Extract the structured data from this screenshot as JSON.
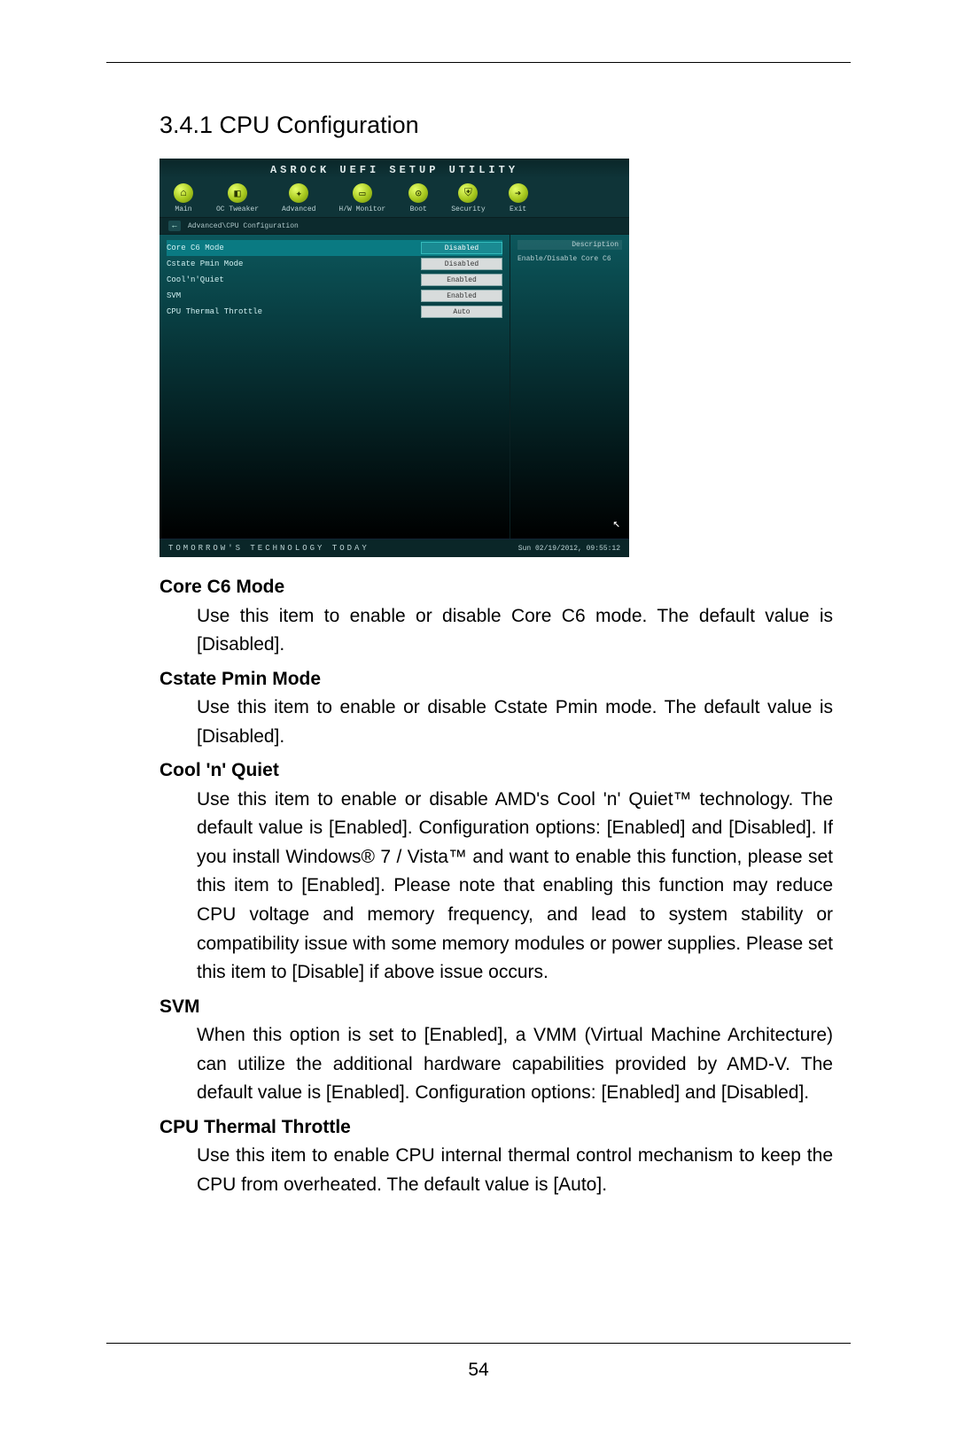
{
  "page_number": "54",
  "section_title": "3.4.1  CPU Configuration",
  "bios": {
    "header": "ASROCK UEFI SETUP UTILITY",
    "tabs": [
      {
        "glyph": "⌂",
        "label": "Main"
      },
      {
        "glyph": "◧",
        "label": "OC Tweaker"
      },
      {
        "glyph": "✦",
        "label": "Advanced"
      },
      {
        "glyph": "▭",
        "label": "H/W Monitor"
      },
      {
        "glyph": "⊙",
        "label": "Boot"
      },
      {
        "glyph": "⛨",
        "label": "Security"
      },
      {
        "glyph": "➔",
        "label": "Exit"
      }
    ],
    "breadcrumb": "Advanced\\CPU Configuration",
    "rows": [
      {
        "name": "Core C6 Mode",
        "value": "Disabled",
        "selected": true
      },
      {
        "name": "Cstate Pmin Mode",
        "value": "Disabled",
        "selected": false
      },
      {
        "name": "Cool'n'Quiet",
        "value": "Enabled",
        "selected": false
      },
      {
        "name": "SVM",
        "value": "Enabled",
        "selected": false
      },
      {
        "name": "CPU Thermal Throttle",
        "value": "Auto",
        "selected": false
      }
    ],
    "description_title": "Description",
    "description_text": "Enable/Disable Core C6",
    "footer_left": "TOMORROW'S TECHNOLOGY TODAY",
    "footer_right": "Sun 02/19/2012, 09:55:12"
  },
  "items": [
    {
      "title": "Core C6 Mode",
      "body": "Use this item to enable or disable Core C6 mode. The default value is [Disabled]."
    },
    {
      "title": "Cstate Pmin Mode",
      "body": "Use this item to enable or disable Cstate Pmin mode. The default value is [Disabled]."
    },
    {
      "title": "Cool 'n' Quiet",
      "body": "Use this item to enable or disable AMD's Cool 'n' Quiet™ technology. The default value is [Enabled]. Configuration options: [Enabled] and [Disabled]. If you install Windows® 7 / Vista™ and want to enable this function, please set this item to [Enabled]. Please note that enabling this function may reduce CPU voltage and memory frequency, and lead to system stability or compatibility issue with some memory modules or power supplies. Please set this item to [Disable] if above issue occurs."
    },
    {
      "title": "SVM",
      "body": "When this option is set to [Enabled], a VMM (Virtual Machine Architecture) can utilize the additional hardware capabilities provided by AMD-V. The default value is [Enabled]. Configuration options: [Enabled] and [Disabled]."
    },
    {
      "title": "CPU Thermal Throttle",
      "body": "Use this item to enable CPU internal thermal control mechanism to keep the CPU from overheated. The default value is [Auto]."
    }
  ]
}
